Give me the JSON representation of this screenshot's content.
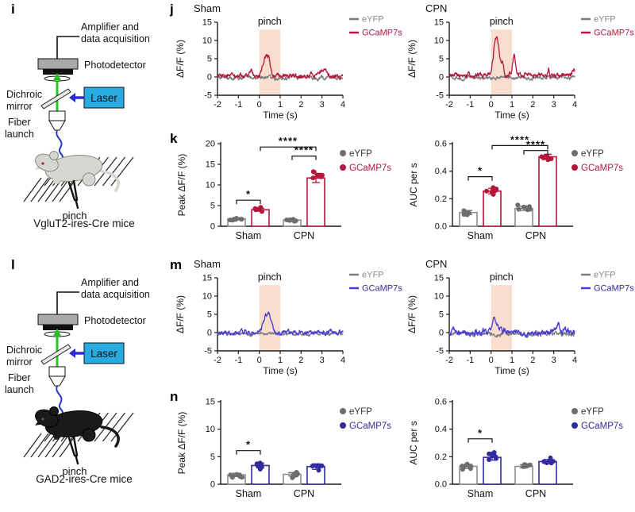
{
  "panels": {
    "i": {
      "letter": "i",
      "caption": "VgluT2-ires-Cre mice",
      "mouse": "gray"
    },
    "j": {
      "letter": "j"
    },
    "k": {
      "letter": "k"
    },
    "l": {
      "letter": "l",
      "caption": "GAD2-ires-Cre mice",
      "mouse": "black"
    },
    "m": {
      "letter": "m"
    },
    "n": {
      "letter": "n"
    }
  },
  "schematic_labels": {
    "amplifier_line1": "Amplifier and",
    "amplifier_line2": "data acquisition",
    "photodetector": "Photodetector",
    "dichroic_line1": "Dichroic",
    "dichroic_line2": "mirror",
    "laser": "Laser",
    "fiber_line1": "Fiber",
    "fiber_line2": "launch",
    "pinch": "pinch"
  },
  "colors": {
    "red": "#b5173c",
    "blue": "#322b9e",
    "blue_trace": "#4b3ed2",
    "gray_marker": "#6e6e6e",
    "gray_trace": "#7c7c7c",
    "pinch_shade": "#f9ddcf",
    "laser_box": "#29abe2",
    "beam_green": "#23c423",
    "fiber_blue": "#2438c8",
    "arrow_blue": "#2a2ad8",
    "mouse_gray": "#d6d6d0",
    "mouse_black": "#1a1a1a",
    "axis": "#1c1c1c"
  },
  "chart_data": [
    {
      "id": "j-sham",
      "panel": "j",
      "type": "line",
      "title": "Sham",
      "xlabel": "Time (s)",
      "ylabel": "ΔF/F (%)",
      "xlim": [
        -2,
        4
      ],
      "ylim": [
        -5,
        15
      ],
      "xticks": [
        -2,
        -1,
        0,
        1,
        2,
        3,
        4
      ],
      "yticks": [
        -5,
        0,
        5,
        10,
        15
      ],
      "pinch_label": "pinch",
      "pinch_window": [
        0,
        1
      ],
      "legend": [
        "eYFP",
        "GCaMP7s"
      ],
      "legend_position": "right",
      "seed": 7,
      "series": [
        {
          "name": "eYFP",
          "color": "#7c7c7c",
          "legend_color": "#8a8a8a",
          "offset": -0.15,
          "noise": 0.5,
          "peaks": []
        },
        {
          "name": "GCaMP7s",
          "color": "#b5173c",
          "offset": 0.25,
          "noise": 0.55,
          "peaks": [
            {
              "t": -0.4,
              "amp": 1.6,
              "w": 0.06
            },
            {
              "t": 0.3,
              "amp": 4.6,
              "w": 0.13
            },
            {
              "t": 0.45,
              "amp": 2.6,
              "w": 0.09
            },
            {
              "t": 2.5,
              "amp": 0.9,
              "w": 0.07
            },
            {
              "t": 3.0,
              "amp": 1.6,
              "w": 0.09
            },
            {
              "t": 3.2,
              "amp": 1.1,
              "w": 0.06
            }
          ]
        }
      ]
    },
    {
      "id": "j-cpn",
      "panel": "j",
      "type": "line",
      "title": "CPN",
      "xlabel": "Time (s)",
      "ylabel": "ΔF/F (%)",
      "xlim": [
        -2,
        4
      ],
      "ylim": [
        -5,
        15
      ],
      "xticks": [
        -2,
        -1,
        0,
        1,
        2,
        3,
        4
      ],
      "yticks": [
        -5,
        0,
        5,
        10,
        15
      ],
      "pinch_label": "pinch",
      "pinch_window": [
        0,
        1
      ],
      "legend": [
        "eYFP",
        "GCaMP7s"
      ],
      "legend_position": "right",
      "seed": 8,
      "series": [
        {
          "name": "eYFP",
          "color": "#7c7c7c",
          "legend_color": "#8a8a8a",
          "offset": -0.2,
          "noise": 0.45,
          "peaks": []
        },
        {
          "name": "GCaMP7s",
          "color": "#b5173c",
          "offset": 0.5,
          "noise": 0.6,
          "peaks": [
            {
              "t": 0.2,
              "amp": 8.6,
              "w": 0.1
            },
            {
              "t": 0.35,
              "amp": 5.2,
              "w": 0.08
            },
            {
              "t": 0.55,
              "amp": 3.4,
              "w": 0.07
            },
            {
              "t": 1.1,
              "amp": 5.3,
              "w": 0.06
            },
            {
              "t": 2.75,
              "amp": 1.7,
              "w": 0.04
            },
            {
              "t": 3.95,
              "amp": 1.7,
              "w": 0.06
            }
          ]
        }
      ]
    },
    {
      "id": "k-peak",
      "panel": "k",
      "type": "bar",
      "ylabel": "Peak ΔF/F (%)",
      "ylim": [
        0,
        20
      ],
      "yticks": [
        0,
        5,
        10,
        15,
        20
      ],
      "ytick_labels": [
        "0",
        "5",
        "10",
        "15",
        "20"
      ],
      "groups": [
        "Sham",
        "CPN"
      ],
      "legend": [
        "eYFP",
        "GCaMP7s"
      ],
      "seed": 21,
      "series": [
        {
          "name": "eYFP",
          "color": "#8c8c8c",
          "dot_color": "#6e6e6e",
          "legend_color": "#333333",
          "values": [
            1.8,
            1.5
          ],
          "errors": [
            0.25,
            0.15
          ],
          "dot_spread": [
            0.55,
            0.4
          ]
        },
        {
          "name": "GCaMP7s",
          "color": "#b5173c",
          "dot_color": "#b5173c",
          "values": [
            4.0,
            11.7
          ],
          "errors": [
            0.35,
            1.1
          ],
          "dot_spread": [
            0.65,
            2.1
          ]
        }
      ],
      "significance": [
        {
          "from": [
            0,
            0
          ],
          "to": [
            0,
            1
          ],
          "y": 6.3,
          "label": "*"
        },
        {
          "from": [
            0,
            1
          ],
          "to": [
            1,
            1
          ],
          "y": 19.2,
          "label": "****"
        },
        {
          "from": [
            1,
            0
          ],
          "to": [
            1,
            1
          ],
          "y": 17.0,
          "label": "****"
        }
      ]
    },
    {
      "id": "k-auc",
      "panel": "k",
      "type": "bar",
      "ylabel": "AUC per s",
      "ylim": [
        0,
        0.6
      ],
      "yticks": [
        0,
        0.2,
        0.4,
        0.6
      ],
      "ytick_labels": [
        "0.0",
        "0.2",
        "0.4",
        "0.6"
      ],
      "groups": [
        "Sham",
        "CPN"
      ],
      "legend": [
        "eYFP",
        "GCaMP7s"
      ],
      "seed": 22,
      "series": [
        {
          "name": "eYFP",
          "color": "#8c8c8c",
          "dot_color": "#6e6e6e",
          "legend_color": "#333333",
          "values": [
            0.1,
            0.13
          ],
          "errors": [
            0.015,
            0.015
          ],
          "dot_spread": [
            0.03,
            0.028
          ]
        },
        {
          "name": "GCaMP7s",
          "color": "#b5173c",
          "dot_color": "#b5173c",
          "values": [
            0.255,
            0.505
          ],
          "errors": [
            0.02,
            0.018
          ],
          "dot_spread": [
            0.04,
            0.03
          ]
        }
      ],
      "significance": [
        {
          "from": [
            0,
            0
          ],
          "to": [
            0,
            1
          ],
          "y": 0.36,
          "label": "*"
        },
        {
          "from": [
            0,
            1
          ],
          "to": [
            1,
            1
          ],
          "y": 0.586,
          "label": "****"
        },
        {
          "from": [
            1,
            0
          ],
          "to": [
            1,
            1
          ],
          "y": 0.55,
          "label": "****"
        }
      ]
    },
    {
      "id": "m-sham",
      "panel": "m",
      "type": "line",
      "title": "Sham",
      "xlabel": "Time (s)",
      "ylabel": "ΔF/F (%)",
      "xlim": [
        -2,
        4
      ],
      "ylim": [
        -5,
        15
      ],
      "xticks": [
        -2,
        -1,
        0,
        1,
        2,
        3,
        4
      ],
      "yticks": [
        -5,
        0,
        5,
        10,
        15
      ],
      "pinch_label": "pinch",
      "pinch_window": [
        0,
        1
      ],
      "legend": [
        "eYFP",
        "GCaMP7s"
      ],
      "legend_position": "right",
      "seed": 9,
      "series": [
        {
          "name": "eYFP",
          "color": "#7c7c7c",
          "legend_color": "#8a8a8a",
          "offset": -0.3,
          "noise": 0.4,
          "peaks": []
        },
        {
          "name": "GCaMP7s",
          "color": "#4b3ed2",
          "legend_color": "#322b9e",
          "offset": 0.1,
          "noise": 0.55,
          "peaks": [
            {
              "t": 0.35,
              "amp": 4.6,
              "w": 0.15
            },
            {
              "t": 0.55,
              "amp": 1.8,
              "w": 0.1
            }
          ]
        }
      ]
    },
    {
      "id": "m-cpn",
      "panel": "m",
      "type": "line",
      "title": "CPN",
      "xlabel": "Time (s)",
      "ylabel": "ΔF/F (%)",
      "xlim": [
        -2,
        4
      ],
      "ylim": [
        -5,
        15
      ],
      "xticks": [
        -2,
        -1,
        0,
        1,
        2,
        3,
        4
      ],
      "yticks": [
        -5,
        0,
        5,
        10,
        15
      ],
      "pinch_label": "pinch",
      "pinch_window": [
        0,
        1
      ],
      "legend": [
        "eYFP",
        "GCaMP7s"
      ],
      "legend_position": "right",
      "seed": 10,
      "series": [
        {
          "name": "eYFP",
          "color": "#7c7c7c",
          "legend_color": "#8a8a8a",
          "offset": -0.35,
          "noise": 0.5,
          "peaks": []
        },
        {
          "name": "GCaMP7s",
          "color": "#4b3ed2",
          "legend_color": "#322b9e",
          "offset": 0.1,
          "noise": 0.75,
          "peaks": [
            {
              "t": 0.18,
              "amp": 3.6,
              "w": 0.09
            },
            {
              "t": 0.45,
              "amp": 1.4,
              "w": 0.1
            },
            {
              "t": 3.2,
              "amp": 2.2,
              "w": 0.07
            },
            {
              "t": 3.5,
              "amp": 1.3,
              "w": 0.05
            }
          ]
        }
      ]
    },
    {
      "id": "n-peak",
      "panel": "n",
      "type": "bar",
      "ylabel": "Peak ΔF/F (%)",
      "ylim": [
        0,
        15
      ],
      "yticks": [
        0,
        5,
        10,
        15
      ],
      "ytick_labels": [
        "0",
        "5",
        "10",
        "15"
      ],
      "groups": [
        "Sham",
        "CPN"
      ],
      "legend": [
        "eYFP",
        "GCaMP7s"
      ],
      "seed": 23,
      "series": [
        {
          "name": "eYFP",
          "color": "#8c8c8c",
          "dot_color": "#6e6e6e",
          "legend_color": "#333333",
          "values": [
            1.7,
            1.8
          ],
          "errors": [
            0.3,
            0.3
          ],
          "dot_spread": [
            0.7,
            0.7
          ]
        },
        {
          "name": "GCaMP7s",
          "color": "#322b9e",
          "dot_color": "#322b9e",
          "values": [
            3.4,
            3.2
          ],
          "errors": [
            0.45,
            0.5
          ],
          "dot_spread": [
            1.0,
            1.1
          ]
        }
      ],
      "significance": [
        {
          "from": [
            0,
            0
          ],
          "to": [
            0,
            1
          ],
          "y": 6.1,
          "label": "*"
        }
      ]
    },
    {
      "id": "n-auc",
      "panel": "n",
      "type": "bar",
      "ylabel": "AUC per s",
      "ylim": [
        0,
        0.6
      ],
      "yticks": [
        0,
        0.2,
        0.4,
        0.6
      ],
      "ytick_labels": [
        "0.0",
        "0.2",
        "0.4",
        "0.6"
      ],
      "groups": [
        "Sham",
        "CPN"
      ],
      "legend": [
        "eYFP",
        "GCaMP7s"
      ],
      "seed": 24,
      "series": [
        {
          "name": "eYFP",
          "color": "#8c8c8c",
          "dot_color": "#6e6e6e",
          "legend_color": "#333333",
          "values": [
            0.13,
            0.13
          ],
          "errors": [
            0.015,
            0.012
          ],
          "dot_spread": [
            0.035,
            0.025
          ]
        },
        {
          "name": "GCaMP7s",
          "color": "#322b9e",
          "dot_color": "#322b9e",
          "values": [
            0.195,
            0.165
          ],
          "errors": [
            0.02,
            0.015
          ],
          "dot_spread": [
            0.045,
            0.03
          ]
        }
      ],
      "significance": [
        {
          "from": [
            0,
            0
          ],
          "to": [
            0,
            1
          ],
          "y": 0.33,
          "label": "*"
        }
      ]
    }
  ]
}
